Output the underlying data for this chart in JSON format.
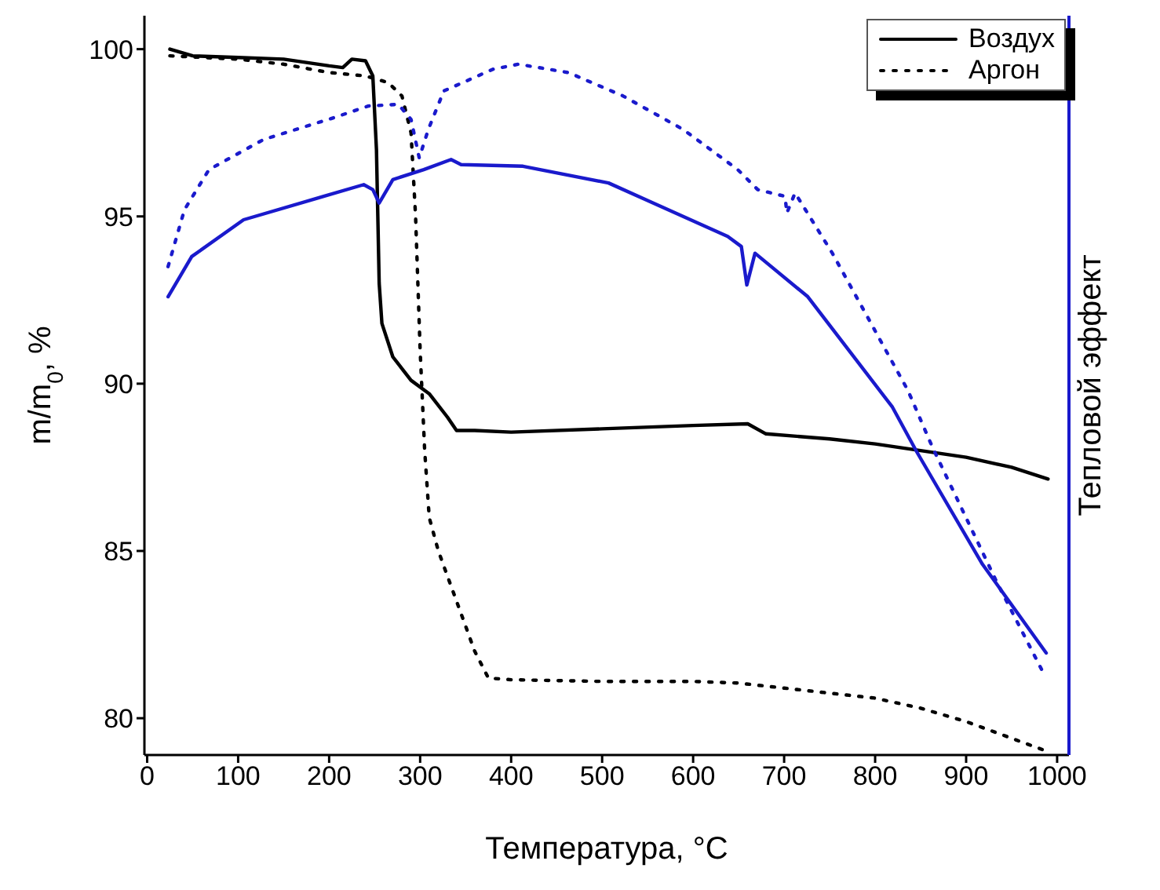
{
  "chart_data": {
    "type": "line",
    "xlabel": "Температура, °C",
    "ylabel": "m/m$_{0}$, %",
    "y2label": "Тепловой эффект",
    "xlim": [
      -3,
      1013
    ],
    "ylim": [
      78.9,
      101
    ],
    "xticks": [
      0,
      100,
      200,
      300,
      400,
      500,
      600,
      700,
      800,
      900,
      1000
    ],
    "yticks": [
      80,
      85,
      90,
      95,
      100
    ],
    "grid": false,
    "legend": "top right",
    "marker": "none",
    "series": [
      {
        "name": "Воздух",
        "color": "#000000",
        "line_style": "solid",
        "x": [
          25,
          50,
          100,
          150,
          200,
          215,
          225,
          240,
          248,
          252,
          255,
          258,
          270,
          290,
          310,
          330,
          340,
          360,
          400,
          500,
          600,
          660,
          680,
          750,
          800,
          850,
          900,
          950,
          990
        ],
        "values": [
          100,
          99.8,
          99.75,
          99.7,
          99.5,
          99.45,
          99.7,
          99.65,
          99.2,
          97,
          93,
          91.8,
          90.8,
          90.1,
          89.7,
          89.0,
          88.6,
          88.6,
          88.55,
          88.65,
          88.75,
          88.8,
          88.5,
          88.35,
          88.2,
          88.0,
          87.8,
          87.5,
          87.15
        ]
      },
      {
        "name": "Аргон",
        "color": "#000000",
        "line_style": "dotted",
        "x": [
          25,
          100,
          150,
          200,
          240,
          265,
          280,
          290,
          295,
          300,
          305,
          310,
          320,
          340,
          360,
          375,
          400,
          500,
          600,
          650,
          700,
          800,
          850,
          900,
          950,
          990
        ],
        "values": [
          99.8,
          99.7,
          99.55,
          99.3,
          99.2,
          99.0,
          98.6,
          97.5,
          95,
          91,
          88,
          86,
          85,
          83.5,
          82,
          81.2,
          81.15,
          81.1,
          81.1,
          81.05,
          80.9,
          80.6,
          80.3,
          79.9,
          79.4,
          79.0
        ]
      },
      {
        "color": "#1a1acc",
        "line_style": "solid",
        "x": [
          23,
          49,
          106,
          194,
          238,
          248,
          255,
          270,
          304,
          334,
          345,
          413,
          507,
          638,
          653,
          659,
          668,
          726,
          819,
          846,
          918,
          988
        ],
        "values": [
          92.6,
          93.8,
          94.9,
          95.6,
          95.95,
          95.8,
          95.4,
          96.1,
          96.4,
          96.7,
          96.55,
          96.5,
          96.0,
          94.4,
          94.1,
          92.95,
          93.9,
          92.6,
          89.3,
          87.95,
          84.6,
          81.95
        ]
      },
      {
        "color": "#1a1acc",
        "line_style": "dotted",
        "x": [
          23,
          41,
          68,
          128,
          205,
          243,
          276,
          290,
          299,
          309,
          326,
          380,
          408,
          463,
          523,
          589,
          649,
          671,
          701,
          703,
          712,
          753,
          836,
          863,
          934,
          984
        ],
        "values": [
          93.5,
          95.2,
          96.4,
          97.3,
          97.95,
          98.3,
          98.35,
          97.9,
          96.75,
          97.6,
          98.75,
          99.4,
          99.55,
          99.3,
          98.6,
          97.6,
          96.4,
          95.8,
          95.6,
          95.1,
          95.7,
          93.9,
          89.8,
          88.1,
          84.05,
          81.4
        ]
      }
    ]
  }
}
